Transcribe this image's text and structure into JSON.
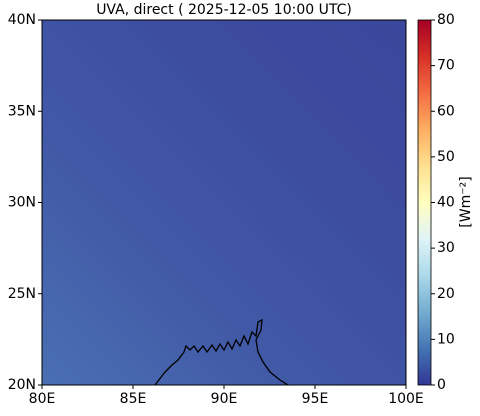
{
  "map": {
    "title": "UVA, direct ( 2025-12-05 10:00 UTC)",
    "xlim": [
      80,
      100
    ],
    "xticks": [
      {
        "value": 80,
        "label": "80E"
      },
      {
        "value": 85,
        "label": "85E"
      },
      {
        "value": 90,
        "label": "90E"
      },
      {
        "value": 95,
        "label": "95E"
      },
      {
        "value": 100,
        "label": "100E"
      }
    ],
    "ylim": [
      20,
      40
    ],
    "yticks": [
      {
        "value": 20,
        "label": "20N"
      },
      {
        "value": 25,
        "label": "25N"
      },
      {
        "value": 30,
        "label": "30N"
      },
      {
        "value": 35,
        "label": "35N"
      },
      {
        "value": 40,
        "label": "40N"
      }
    ],
    "colorbar": {
      "label": "[Wm⁻²]",
      "lim": [
        0,
        80
      ],
      "ticks": [
        0,
        10,
        20,
        30,
        40,
        50,
        60,
        70,
        80
      ],
      "colormap": "RdYlBu_r"
    }
  }
}
